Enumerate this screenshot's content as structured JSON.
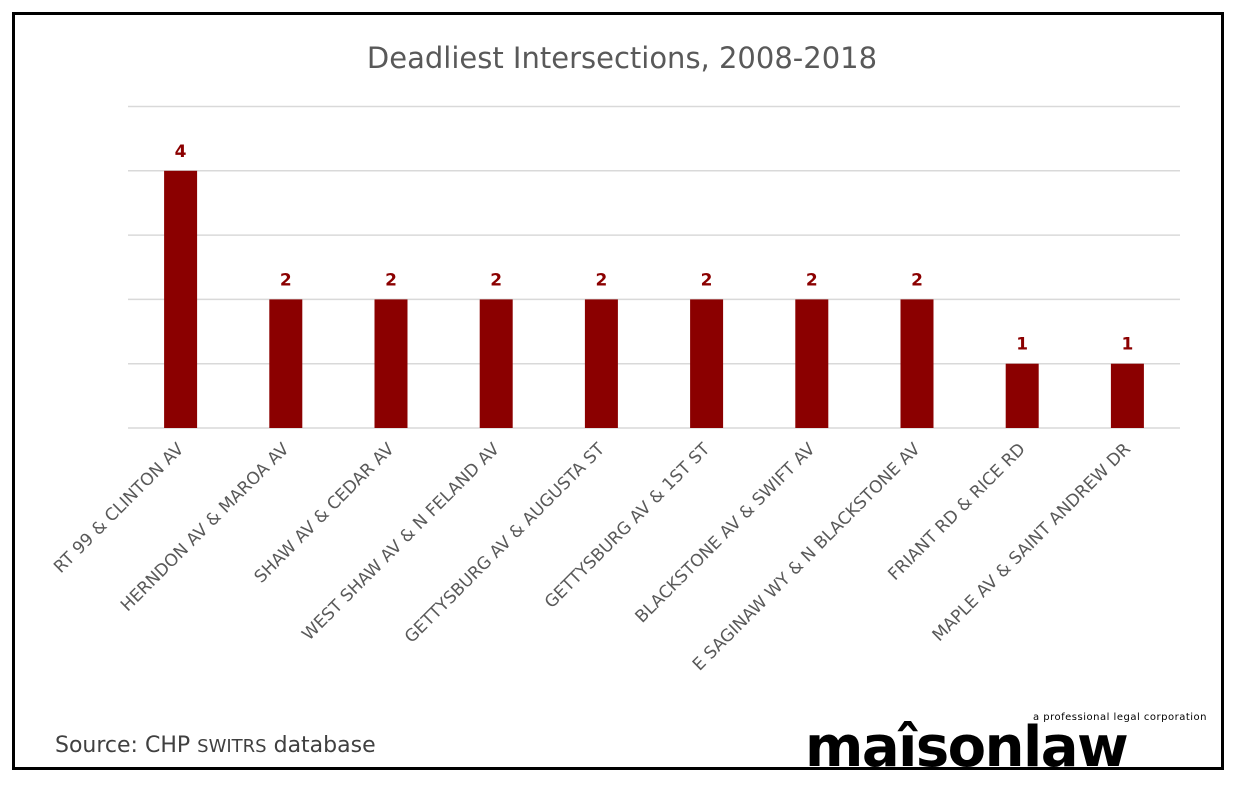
{
  "chart_data": {
    "type": "bar",
    "title": "Deadliest Intersections, 2008-2018",
    "xlabel": "",
    "ylabel": "",
    "categories": [
      "RT 99 & CLINTON AV",
      "HERNDON AV & MAROA AV",
      "SHAW AV & CEDAR AV",
      "WEST SHAW AV & N FELAND AV",
      "GETTYSBURG AV & AUGUSTA ST",
      "GETTYSBURG AV & 1ST ST",
      "BLACKSTONE AV & SWIFT AV",
      "E SAGINAW WY & N BLACKSTONE AV",
      "FRIANT RD & RICE RD",
      "MAPLE AV & SAINT ANDREW DR"
    ],
    "values": [
      4,
      2,
      2,
      2,
      2,
      2,
      2,
      2,
      1,
      1
    ],
    "ylim": [
      0,
      5
    ],
    "yticks": [
      0,
      1,
      2,
      3,
      4,
      5
    ],
    "grid": true,
    "data_labels": true,
    "bar_color": "#8b0000",
    "label_color": "#8b0000"
  },
  "source": {
    "prefix": "Source: CHP ",
    "smallcaps": "SWITRS",
    "suffix": " database"
  },
  "logo": {
    "tagline": "a professional legal corporation",
    "wordmark": "maîsonlaw"
  }
}
